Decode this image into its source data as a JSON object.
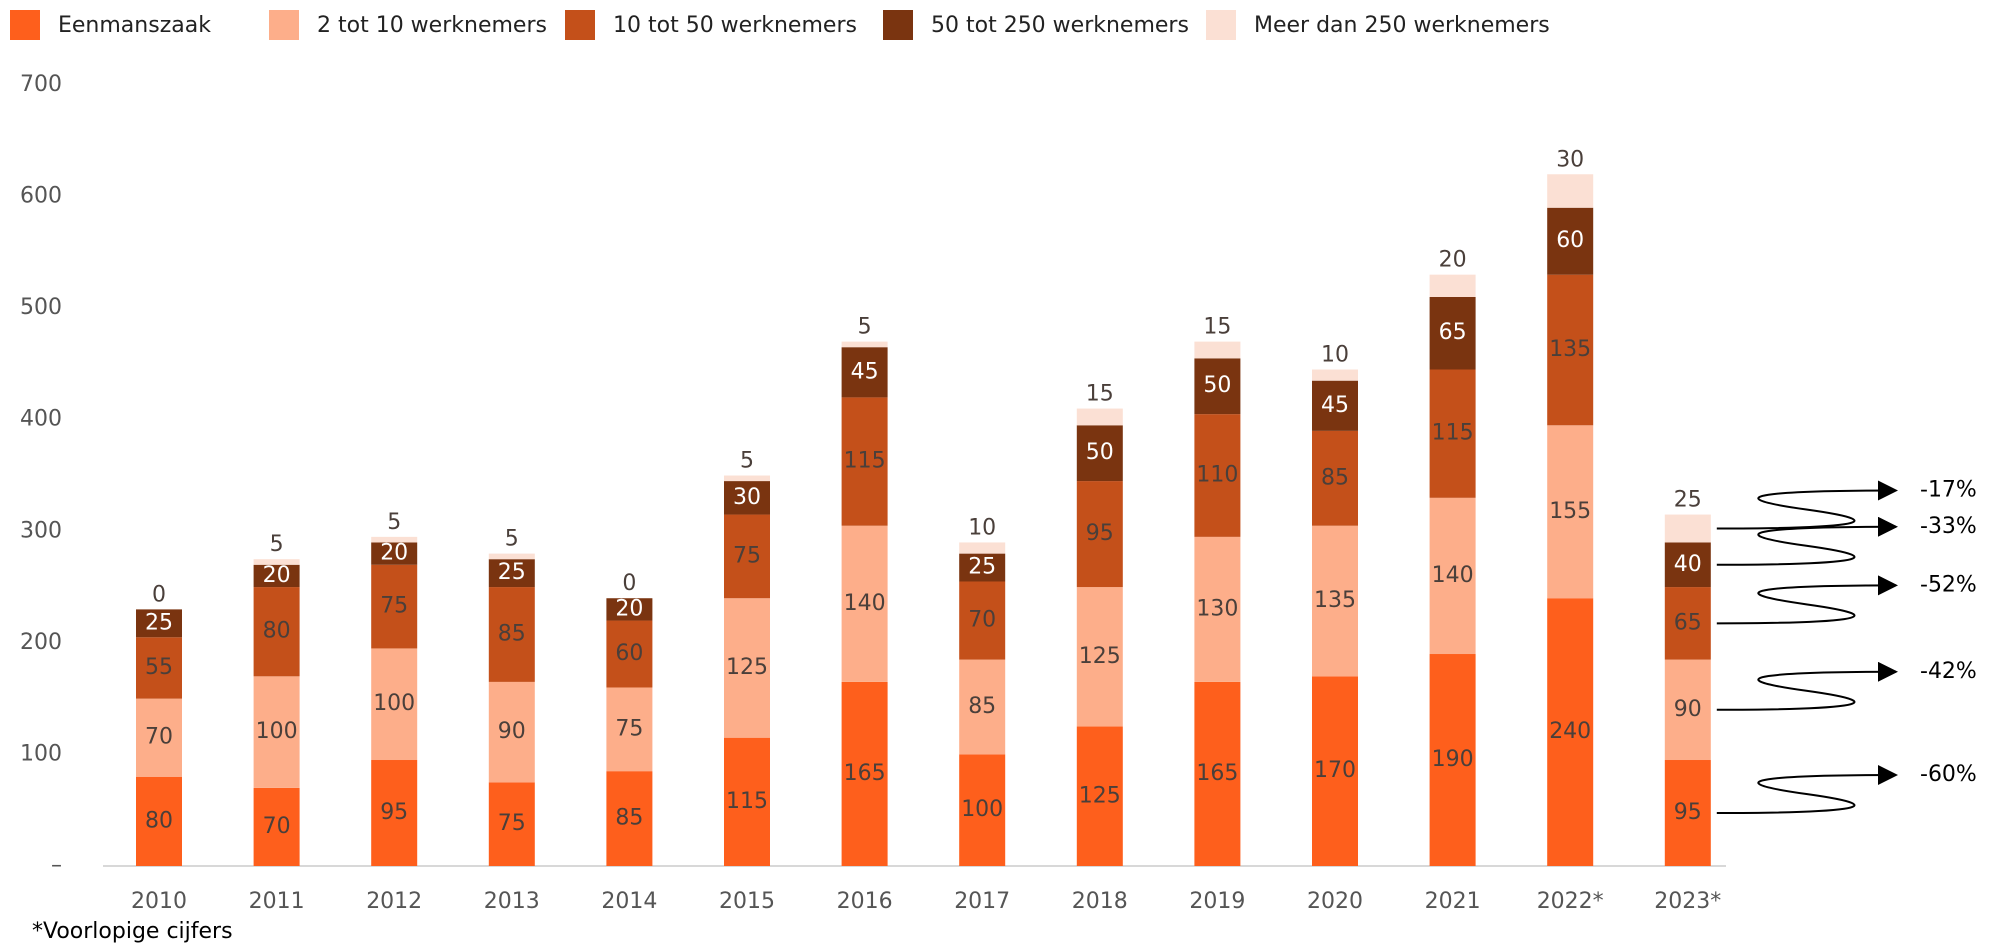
{
  "chart_data": {
    "type": "stacked_bar",
    "categories": [
      "2010",
      "2011",
      "2012",
      "2013",
      "2014",
      "2015",
      "2016",
      "2017",
      "2018",
      "2019",
      "2020",
      "2021",
      "2022*",
      "2023*"
    ],
    "series": [
      {
        "name": "Eenmanszaak",
        "color": "#fe5f1c",
        "values": [
          80,
          70,
          95,
          75,
          85,
          115,
          165,
          100,
          125,
          165,
          170,
          190,
          240,
          95
        ]
      },
      {
        "name": "2 tot 10 werknemers",
        "color": "#fdae8a",
        "values": [
          70,
          100,
          100,
          90,
          75,
          125,
          140,
          85,
          125,
          130,
          135,
          140,
          155,
          90
        ]
      },
      {
        "name": "10 tot 50 werknemers",
        "color": "#c4501a",
        "values": [
          55,
          80,
          75,
          85,
          60,
          75,
          115,
          70,
          95,
          110,
          85,
          115,
          135,
          65
        ]
      },
      {
        "name": "50 tot 250 werknemers",
        "color": "#7a3410",
        "values": [
          25,
          20,
          20,
          25,
          20,
          30,
          45,
          25,
          50,
          50,
          45,
          65,
          60,
          40
        ]
      },
      {
        "name": "Meer dan 250 werknemers",
        "color": "#fbe0d4",
        "values": [
          0,
          5,
          5,
          5,
          0,
          5,
          5,
          10,
          15,
          15,
          10,
          20,
          30,
          25
        ]
      }
    ],
    "ylim": [
      0,
      700
    ],
    "yticks": [
      {
        "value": 0,
        "label": "–"
      },
      100,
      200,
      300,
      400,
      500,
      600,
      700
    ],
    "annotations": [
      "-60%",
      "-42%",
      "-52%",
      "-33%",
      "-17%"
    ],
    "footnote": "*Voorlopige cijfers"
  }
}
